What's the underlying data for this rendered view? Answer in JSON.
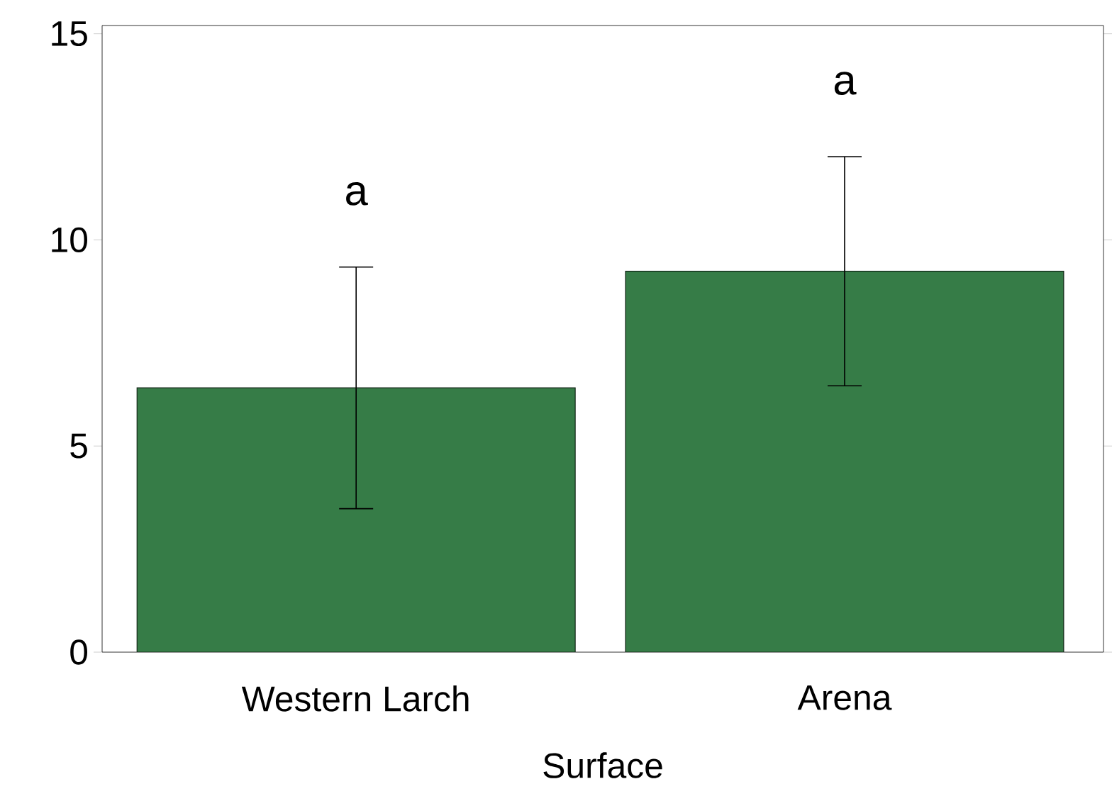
{
  "chart_data": {
    "type": "bar",
    "xlabel": "Surface",
    "categories": [
      "Western Larch",
      "Arena"
    ],
    "values": [
      6.41,
      9.24
    ],
    "errors": [
      2.93,
      2.78
    ],
    "color": "#367c47",
    "ylim": [
      0,
      15.2
    ],
    "yticks": [
      0,
      5,
      10,
      15
    ],
    "annotations": [
      "a",
      "a"
    ]
  }
}
